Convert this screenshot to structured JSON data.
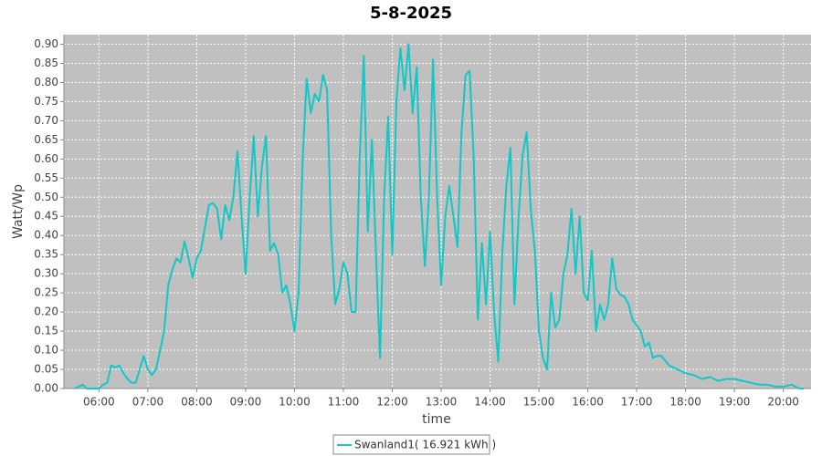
{
  "chart_data": {
    "type": "line",
    "title": "5-8-2025",
    "x_label": "time",
    "y_label": "Watt/Wp",
    "x": [
      330,
      340,
      345,
      360,
      365,
      370,
      375,
      380,
      385,
      390,
      395,
      400,
      405,
      410,
      415,
      420,
      425,
      430,
      435,
      440,
      445,
      450,
      455,
      460,
      465,
      470,
      475,
      480,
      485,
      490,
      495,
      500,
      505,
      510,
      515,
      520,
      525,
      530,
      535,
      540,
      545,
      550,
      555,
      560,
      565,
      570,
      575,
      580,
      585,
      590,
      595,
      600,
      605,
      610,
      615,
      620,
      625,
      630,
      635,
      640,
      645,
      650,
      655,
      660,
      665,
      670,
      675,
      680,
      685,
      690,
      695,
      700,
      705,
      710,
      715,
      720,
      725,
      730,
      735,
      740,
      745,
      750,
      755,
      760,
      765,
      770,
      775,
      780,
      785,
      790,
      795,
      800,
      805,
      810,
      815,
      820,
      825,
      830,
      835,
      840,
      845,
      850,
      855,
      860,
      865,
      870,
      875,
      880,
      885,
      890,
      895,
      900,
      905,
      910,
      915,
      920,
      925,
      930,
      935,
      940,
      945,
      950,
      955,
      960,
      965,
      970,
      975,
      980,
      985,
      990,
      995,
      1000,
      1005,
      1010,
      1015,
      1020,
      1025,
      1030,
      1035,
      1040,
      1045,
      1050,
      1060,
      1070,
      1080,
      1090,
      1100,
      1110,
      1120,
      1130,
      1140,
      1150,
      1160,
      1170,
      1180,
      1190,
      1200,
      1210,
      1220,
      1225
    ],
    "series": [
      {
        "name": "Swanland1( 16.921 kWh )",
        "color": "#10c8c8",
        "values": [
          0,
          0.01,
          0,
          0,
          0.01,
          0.015,
          0.06,
          0.055,
          0.06,
          0.04,
          0.025,
          0.015,
          0.015,
          0.05,
          0.085,
          0.05,
          0.035,
          0.05,
          0.1,
          0.15,
          0.27,
          0.31,
          0.34,
          0.33,
          0.385,
          0.34,
          0.29,
          0.34,
          0.36,
          0.42,
          0.48,
          0.485,
          0.47,
          0.39,
          0.48,
          0.44,
          0.5,
          0.62,
          0.45,
          0.3,
          0.5,
          0.66,
          0.45,
          0.58,
          0.66,
          0.36,
          0.38,
          0.35,
          0.25,
          0.27,
          0.22,
          0.15,
          0.25,
          0.6,
          0.81,
          0.72,
          0.77,
          0.75,
          0.82,
          0.78,
          0.4,
          0.22,
          0.26,
          0.33,
          0.3,
          0.2,
          0.2,
          0.6,
          0.87,
          0.41,
          0.65,
          0.35,
          0.08,
          0.5,
          0.71,
          0.35,
          0.75,
          0.89,
          0.78,
          0.9,
          0.72,
          0.84,
          0.5,
          0.32,
          0.5,
          0.86,
          0.5,
          0.27,
          0.45,
          0.53,
          0.45,
          0.37,
          0.67,
          0.82,
          0.83,
          0.6,
          0.18,
          0.38,
          0.22,
          0.41,
          0.2,
          0.07,
          0.35,
          0.53,
          0.63,
          0.22,
          0.45,
          0.61,
          0.67,
          0.47,
          0.36,
          0.15,
          0.08,
          0.05,
          0.25,
          0.16,
          0.18,
          0.3,
          0.35,
          0.47,
          0.3,
          0.45,
          0.25,
          0.23,
          0.36,
          0.15,
          0.22,
          0.18,
          0.22,
          0.34,
          0.26,
          0.245,
          0.24,
          0.22,
          0.18,
          0.165,
          0.15,
          0.11,
          0.12,
          0.08,
          0.085,
          0.085,
          0.06,
          0.05,
          0.04,
          0.035,
          0.025,
          0.03,
          0.02,
          0.025,
          0.025,
          0.02,
          0.015,
          0.01,
          0.01,
          0.005,
          0.005,
          0.01,
          0,
          0
        ]
      }
    ],
    "xlim": [
      317,
      1234
    ],
    "xticks": [
      {
        "value": 360,
        "label": "06:00"
      },
      {
        "value": 420,
        "label": "07:00"
      },
      {
        "value": 480,
        "label": "08:00"
      },
      {
        "value": 540,
        "label": "09:00"
      },
      {
        "value": 600,
        "label": "10:00"
      },
      {
        "value": 660,
        "label": "11:00"
      },
      {
        "value": 720,
        "label": "12:00"
      },
      {
        "value": 780,
        "label": "13:00"
      },
      {
        "value": 840,
        "label": "14:00"
      },
      {
        "value": 900,
        "label": "15:00"
      },
      {
        "value": 960,
        "label": "16:00"
      },
      {
        "value": 1020,
        "label": "17:00"
      },
      {
        "value": 1080,
        "label": "18:00"
      },
      {
        "value": 1140,
        "label": "19:00"
      },
      {
        "value": 1200,
        "label": "20:00"
      }
    ],
    "ylim": [
      0,
      0.925
    ],
    "yticks": [
      {
        "value": 0,
        "label": "0.00"
      },
      {
        "value": 0.05,
        "label": "0.05"
      },
      {
        "value": 0.1,
        "label": "0.10"
      },
      {
        "value": 0.15,
        "label": "0.15"
      },
      {
        "value": 0.2,
        "label": "0.20"
      },
      {
        "value": 0.25,
        "label": "0.25"
      },
      {
        "value": 0.3,
        "label": "0.30"
      },
      {
        "value": 0.35,
        "label": "0.35"
      },
      {
        "value": 0.4,
        "label": "0.40"
      },
      {
        "value": 0.45,
        "label": "0.45"
      },
      {
        "value": 0.5,
        "label": "0.50"
      },
      {
        "value": 0.55,
        "label": "0.55"
      },
      {
        "value": 0.6,
        "label": "0.60"
      },
      {
        "value": 0.65,
        "label": "0.65"
      },
      {
        "value": 0.7,
        "label": "0.70"
      },
      {
        "value": 0.75,
        "label": "0.75"
      },
      {
        "value": 0.8,
        "label": "0.80"
      },
      {
        "value": 0.85,
        "label": "0.85"
      },
      {
        "value": 0.9,
        "label": "0.90"
      }
    ],
    "grid": true,
    "legend": "bottom"
  }
}
